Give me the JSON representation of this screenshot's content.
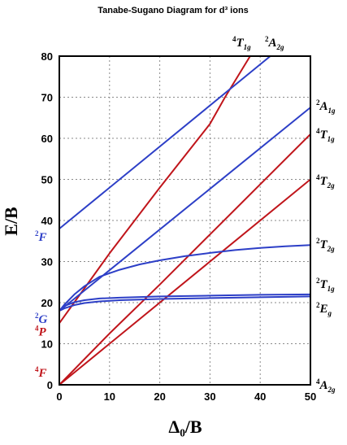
{
  "chart_data": {
    "type": "line",
    "title": "Tanabe-Sugano Diagram for d³ ions",
    "xlabel": "Δ₀/B",
    "ylabel": "E/B",
    "xlim": [
      0,
      50
    ],
    "ylim": [
      0,
      80
    ],
    "xticks": [
      "0",
      "10",
      "20",
      "30",
      "40",
      "50"
    ],
    "yticks": [
      "0",
      "10",
      "20",
      "30",
      "40",
      "50",
      "60",
      "70",
      "80"
    ],
    "grid": true,
    "free_ion_terms": [
      {
        "sup": "4",
        "letter": "F",
        "y": 3,
        "color": "#c0151b"
      },
      {
        "sup": "4",
        "letter": "P",
        "y": 13,
        "color": "#c0151b"
      },
      {
        "sup": "2",
        "letter": "G",
        "y": 16,
        "color": "#2d3fc7"
      },
      {
        "sup": "2",
        "letter": "F",
        "y": 36,
        "color": "#2d3fc7"
      }
    ],
    "series": [
      {
        "label_sup": "4",
        "label_letter": "A",
        "label_sub": "2g",
        "color": "#c0151b",
        "x": [
          0,
          50
        ],
        "y": [
          0,
          0
        ]
      },
      {
        "label_sup": "4",
        "label_letter": "T",
        "label_sub": "2g",
        "color": "#c0151b",
        "x": [
          0,
          50
        ],
        "y": [
          0,
          50
        ]
      },
      {
        "label_sup": "4",
        "label_letter": "T",
        "label_sub": "1g",
        "color": "#c0151b",
        "x": [
          0,
          10,
          20,
          30,
          40,
          50
        ],
        "y": [
          0,
          12.5,
          24.4,
          36.6,
          48.8,
          61
        ]
      },
      {
        "label_sup": "4",
        "label_letter": "T",
        "label_sub": "1g",
        "color": "#c0151b",
        "x": [
          0,
          10,
          20,
          30,
          33,
          38
        ],
        "y": [
          15,
          32,
          48,
          63.5,
          70,
          80
        ]
      },
      {
        "label_sup": "2",
        "label_letter": "E",
        "label_sub": "g",
        "color": "#2d3fc7",
        "x": [
          0,
          1,
          3,
          5,
          8,
          12,
          20,
          30,
          40,
          50
        ],
        "y": [
          18,
          18.6,
          19.4,
          19.9,
          20.3,
          20.6,
          20.9,
          21.1,
          21.3,
          21.5
        ]
      },
      {
        "label_sup": "2",
        "label_letter": "T",
        "label_sub": "1g",
        "color": "#2d3fc7",
        "x": [
          0,
          1,
          3,
          5,
          8,
          12,
          20,
          30,
          40,
          50
        ],
        "y": [
          18,
          19.2,
          20.1,
          20.6,
          21,
          21.2,
          21.5,
          21.7,
          21.9,
          22
        ]
      },
      {
        "label_sup": "2",
        "label_letter": "T",
        "label_sub": "2g",
        "color": "#2d3fc7",
        "x": [
          0,
          1,
          3,
          5,
          8,
          12,
          16,
          20,
          25,
          30,
          35,
          40,
          45,
          50
        ],
        "y": [
          18,
          19.5,
          22,
          24,
          26.3,
          28,
          29.3,
          30.3,
          31.3,
          32.1,
          32.8,
          33.3,
          33.7,
          34
        ]
      },
      {
        "label_sup": "2",
        "label_letter": "A",
        "label_sub": "1g",
        "color": "#2d3fc7",
        "x": [
          0,
          50
        ],
        "y": [
          18,
          67.5
        ]
      },
      {
        "label_sup": "2",
        "label_letter": "A",
        "label_sub": "2g",
        "color": "#2d3fc7",
        "x": [
          0,
          42
        ],
        "y": [
          38,
          80
        ]
      }
    ]
  }
}
